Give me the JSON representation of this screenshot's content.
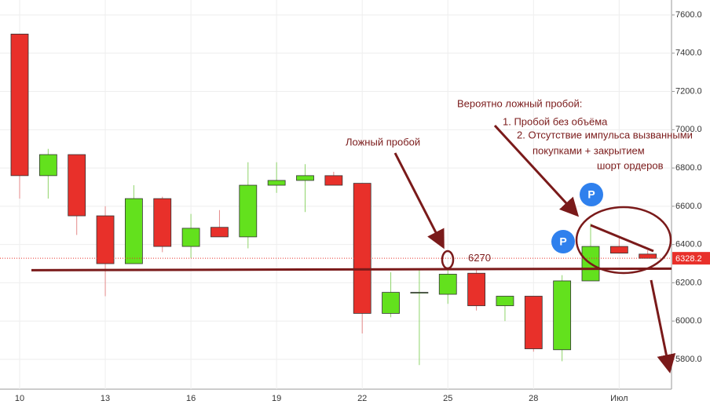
{
  "chart_data": {
    "type": "candlestick",
    "categories": [
      "10",
      null,
      null,
      "13",
      null,
      null,
      "16",
      null,
      null,
      "19",
      null,
      null,
      "22",
      null,
      null,
      "25",
      null,
      null,
      "28",
      null,
      null,
      "Июл",
      null
    ],
    "open": [
      7500,
      6760,
      6870,
      6550,
      6300,
      6640,
      6390,
      6490,
      6440,
      6710,
      6735,
      6760,
      6720,
      6040,
      6150,
      6140,
      6250,
      6080,
      6130,
      5850,
      6210,
      6390,
      6350
    ],
    "high": [
      7500,
      6900,
      6870,
      6600,
      6710,
      6650,
      6560,
      6580,
      6830,
      6830,
      6820,
      6780,
      6720,
      6255,
      6270,
      6270,
      6270,
      6130,
      6130,
      6240,
      6510,
      6440,
      6370
    ],
    "low": [
      6640,
      6640,
      6450,
      6130,
      6300,
      6360,
      6330,
      6440,
      6380,
      6670,
      6570,
      6710,
      5935,
      6020,
      5770,
      6090,
      6055,
      6000,
      5840,
      5790,
      6210,
      6355,
      6328.2
    ],
    "close": [
      6760,
      6870,
      6550,
      6300,
      6640,
      6390,
      6485,
      6440,
      6710,
      6735,
      6760,
      6710,
      6040,
      6150,
      6150,
      6245,
      6080,
      6130,
      5855,
      6210,
      6390,
      6355,
      6328.2
    ],
    "up_color": "#63e11d",
    "down_color": "#e8302a",
    "ylim": [
      5644,
      7678
    ],
    "yticks": [
      {
        "value": 5800,
        "label": "5800.0"
      },
      {
        "value": 6000,
        "label": "6000.0"
      },
      {
        "value": 6200,
        "label": "6200.0"
      },
      {
        "value": 6400,
        "label": "6400.0"
      },
      {
        "value": 6600,
        "label": "6600.0"
      },
      {
        "value": 6800,
        "label": "6800.0"
      },
      {
        "value": 7000,
        "label": "7000.0"
      },
      {
        "value": 7200,
        "label": "7200.0"
      },
      {
        "value": 7400,
        "label": "7400.0"
      },
      {
        "value": 7600,
        "label": "7600.0"
      }
    ],
    "grid": true,
    "last_price": 6328.2,
    "level": 6270,
    "annotations": [
      "Ложный пробой",
      "Вероятно ложный пробой:",
      "1. Пробой без объёма",
      "2. Отсутствие импульса вызванными",
      "покупками + закрытием",
      "шорт ордеров"
    ],
    "icons": [
      "P",
      "P"
    ]
  }
}
